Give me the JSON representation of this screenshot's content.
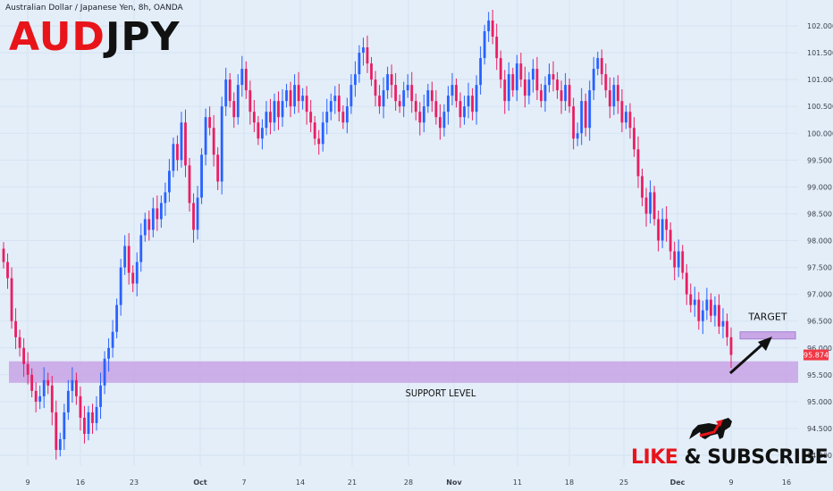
{
  "header": {
    "title": "Australian Dollar / Japanese Yen, 8h, OANDA"
  },
  "brand": {
    "part1": "AUD",
    "part2": "JPY"
  },
  "cta": {
    "like": "LIKE",
    "rest": " & SUBSCRIBE"
  },
  "colors": {
    "up": "#2962ff",
    "down": "#e91e63",
    "support_zone": "#c9a6e6",
    "target_zone": "#c9a6e6",
    "price_tag": "#f23645",
    "brand_red": "#e8141a"
  },
  "icons": [
    "bull-logo-icon",
    "target-arrow-icon"
  ],
  "chart_data": {
    "type": "candlestick",
    "title": "Australian Dollar / Japanese Yen, 8h, OANDA",
    "ylim": [
      93.8,
      102.4
    ],
    "y_ticks": [
      "102.000",
      "101.500",
      "101.000",
      "100.500",
      "100.000",
      "99.500",
      "99.000",
      "98.500",
      "98.000",
      "97.500",
      "97.000",
      "96.500",
      "96.000",
      "95.500",
      "95.000",
      "94.500",
      "94.000"
    ],
    "x_ticks": [
      "9",
      "16",
      "23",
      "Oct",
      "7",
      "14",
      "21",
      "28",
      "Nov",
      "11",
      "18",
      "25",
      "Dec",
      "9",
      "16"
    ],
    "x_ticks_bold": [
      "Oct",
      "Nov",
      "Dec"
    ],
    "last_price": "95.874",
    "support_zone": {
      "low": 95.35,
      "high": 95.75,
      "label": "SUPPORT LEVEL"
    },
    "target_zone": {
      "low": 96.2,
      "high": 96.3,
      "label": "TARGET"
    },
    "series": [
      {
        "name": "AUDJPY",
        "close": [
          97.6,
          97.3,
          96.5,
          96.2,
          96.0,
          95.7,
          95.5,
          95.2,
          95.0,
          95.1,
          95.4,
          95.3,
          94.8,
          94.1,
          94.3,
          94.8,
          95.2,
          95.4,
          95.1,
          94.7,
          94.4,
          94.8,
          94.6,
          94.9,
          95.3,
          95.8,
          96.0,
          96.3,
          96.8,
          97.5,
          97.9,
          97.4,
          97.2,
          97.6,
          98.1,
          98.4,
          98.2,
          98.6,
          98.4,
          98.7,
          98.9,
          99.3,
          99.8,
          99.5,
          100.2,
          99.4,
          98.7,
          98.2,
          98.8,
          99.6,
          100.3,
          100.1,
          99.6,
          99.1,
          100.5,
          101.0,
          100.6,
          100.3,
          100.9,
          101.2,
          100.8,
          100.4,
          100.2,
          99.9,
          100.1,
          100.4,
          100.2,
          100.6,
          100.3,
          100.6,
          100.8,
          100.5,
          100.9,
          100.6,
          100.7,
          100.4,
          100.2,
          99.9,
          99.8,
          100.2,
          100.4,
          100.6,
          100.7,
          100.4,
          100.2,
          100.5,
          100.9,
          101.1,
          101.5,
          101.6,
          101.3,
          101.0,
          100.7,
          100.5,
          100.8,
          101.1,
          100.9,
          100.6,
          100.5,
          100.8,
          100.9,
          100.6,
          100.4,
          100.2,
          100.5,
          100.8,
          100.6,
          100.3,
          100.1,
          100.4,
          100.7,
          100.9,
          100.6,
          100.3,
          100.5,
          100.7,
          100.4,
          100.9,
          101.4,
          101.9,
          102.1,
          101.8,
          101.4,
          101.0,
          100.6,
          101.1,
          100.8,
          101.3,
          101.0,
          100.7,
          101.0,
          101.2,
          100.8,
          100.6,
          100.9,
          101.1,
          101.0,
          100.8,
          100.6,
          100.9,
          100.5,
          99.9,
          100.0,
          100.6,
          100.1,
          100.8,
          101.2,
          101.4,
          101.1,
          100.8,
          100.5,
          100.9,
          100.6,
          100.2,
          100.4,
          100.1,
          99.7,
          99.2,
          98.8,
          98.5,
          98.9,
          98.4,
          98.0,
          98.4,
          98.2,
          97.8,
          97.5,
          97.8,
          97.4,
          97.0,
          96.8,
          96.9,
          96.5,
          96.7,
          96.9,
          96.6,
          96.8,
          96.4,
          96.5,
          96.2,
          95.87
        ]
      }
    ]
  }
}
